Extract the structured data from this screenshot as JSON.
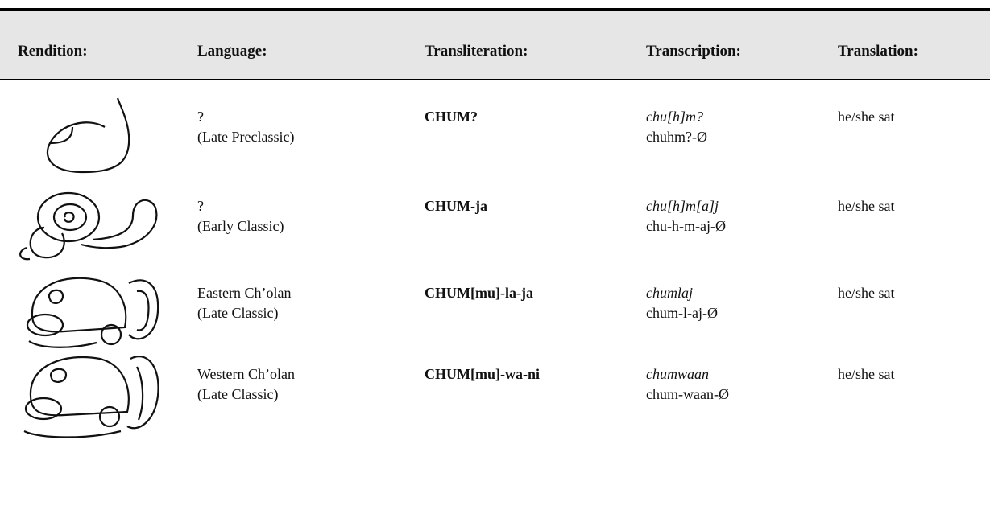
{
  "table": {
    "headers": [
      "Rendition:",
      "Language:",
      "Transliteration:",
      "Transcription:",
      "Translation:"
    ],
    "rows": [
      {
        "language": [
          "?",
          "(Late Preclassic)"
        ],
        "transliteration": "CHUM?",
        "transcription": [
          "chu[h]m?",
          "chuhm?-Ø"
        ],
        "translation": "he/she sat"
      },
      {
        "language": [
          "?",
          "(Early Classic)"
        ],
        "transliteration": "CHUM-ja",
        "transcription": [
          "chu[h]m[a]j",
          "chu-h-m-aj-Ø"
        ],
        "translation": "he/she sat"
      },
      {
        "language": [
          "Eastern Ch’olan",
          "(Late Classic)"
        ],
        "transliteration": "CHUM[mu]-la-ja",
        "transcription": [
          "chumlaj",
          "chum-l-aj-Ø"
        ],
        "translation": "he/she sat"
      },
      {
        "language": [
          "Western Ch’olan",
          "(Late Classic)"
        ],
        "transliteration": "CHUM[mu]-wa-ni",
        "transcription": [
          "chumwaan",
          "chum-waan-Ø"
        ],
        "translation": "he/she sat"
      }
    ]
  }
}
